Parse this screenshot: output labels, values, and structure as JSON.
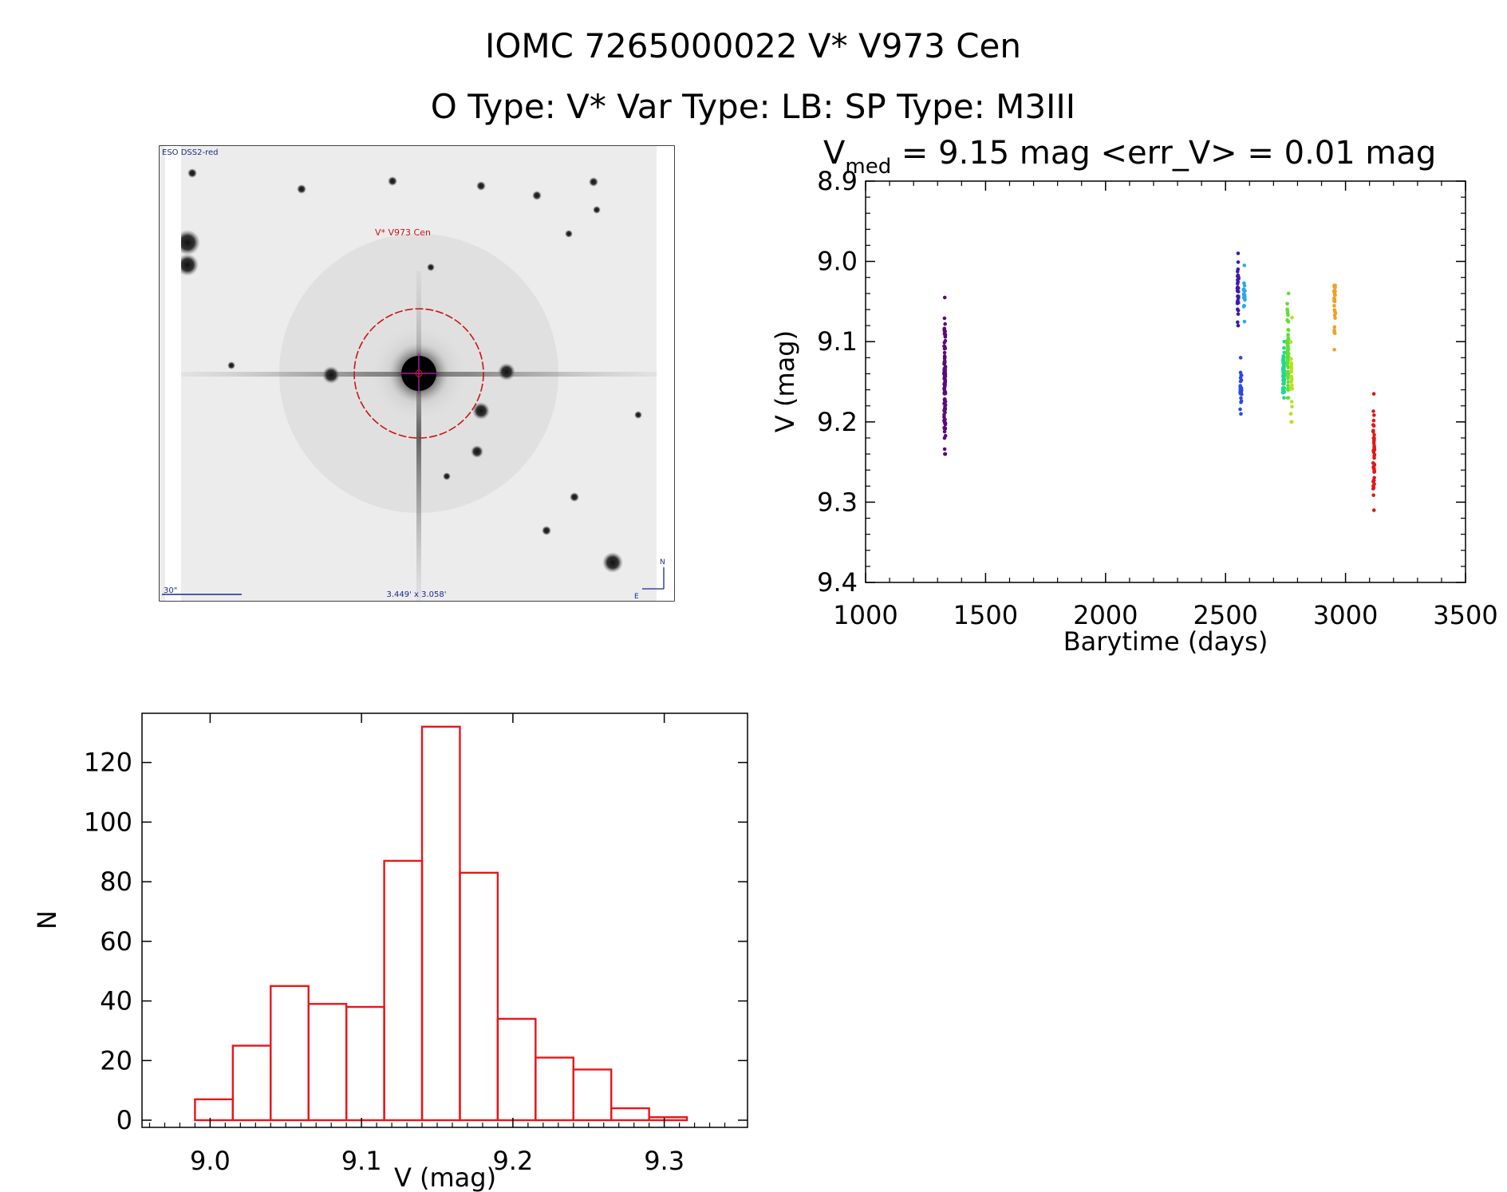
{
  "header": {
    "title": "IOMC 7265000022   V* V973 Cen",
    "subtitle": "O Type: V*  Var Type: LB:  SP Type: M3III"
  },
  "finder": {
    "survey_label": "ESO DSS2-red",
    "target_label": "V* V973 Cen",
    "scale_label": "30\"",
    "fov_label": "3.449' x 3.058'",
    "north_label": "N",
    "east_label": "E"
  },
  "colors": {
    "histogram": "#e8161b",
    "finder_circle": "#c81414",
    "finder_cross": "#a0209a",
    "finder_text": "#1a2a8c"
  },
  "chart_data": [
    {
      "type": "scatter",
      "title_prefix": "V",
      "title_sub": "med",
      "title_rest": " = 9.15 mag <err_V> = 0.01 mag",
      "xlabel": "Barytime (days)",
      "ylabel": "V (mag)",
      "xlim": [
        1000,
        3500
      ],
      "ylim": [
        9.4,
        8.9
      ],
      "y_inverted": true,
      "xticks": [
        1000,
        1500,
        2000,
        2500,
        3000,
        3500
      ],
      "yticks": [
        8.9,
        9.0,
        9.1,
        9.2,
        9.3,
        9.4
      ],
      "xtick_labels": [
        "1000",
        "1500",
        "2000",
        "2500",
        "3000",
        "3500"
      ],
      "ytick_labels": [
        "8.9",
        "9.0",
        "9.1",
        "9.2",
        "9.3",
        "9.4"
      ],
      "series": [
        {
          "color": "#5a0a78",
          "x": 1330,
          "ylo": 9.045,
          "yhi": 9.24,
          "ycenter": 9.16,
          "n": 110
        },
        {
          "color": "#3a1ab0",
          "x": 2552,
          "ylo": 8.99,
          "yhi": 9.08,
          "ycenter": 9.04,
          "n": 30
        },
        {
          "color": "#2a4ae0",
          "x": 2564,
          "ylo": 9.12,
          "yhi": 9.19,
          "ycenter": 9.16,
          "n": 25
        },
        {
          "color": "#2aaae8",
          "x": 2578,
          "ylo": 9.005,
          "yhi": 9.075,
          "ycenter": 9.04,
          "n": 20
        },
        {
          "color": "#20d890",
          "x": 2742,
          "ylo": 9.1,
          "yhi": 9.17,
          "ycenter": 9.14,
          "n": 60
        },
        {
          "color": "#60e030",
          "x": 2760,
          "ylo": 9.04,
          "yhi": 9.17,
          "ycenter": 9.12,
          "n": 60
        },
        {
          "color": "#b8e020",
          "x": 2775,
          "ylo": 9.07,
          "yhi": 9.2,
          "ycenter": 9.15,
          "n": 25
        },
        {
          "color": "#f0a020",
          "x": 2955,
          "ylo": 9.03,
          "yhi": 9.11,
          "ycenter": 9.055,
          "n": 30
        },
        {
          "color": "#e01818",
          "x": 3118,
          "ylo": 9.165,
          "yhi": 9.31,
          "ycenter": 9.24,
          "n": 45
        }
      ]
    },
    {
      "type": "bar",
      "xlabel": "V (mag)",
      "ylabel": "N",
      "xlim": [
        9.0,
        9.35
      ],
      "ylim": [
        0,
        130
      ],
      "xticks": [
        9.0,
        9.1,
        9.2,
        9.3
      ],
      "xtick_labels": [
        "9.0",
        "9.1",
        "9.2",
        "9.3"
      ],
      "yticks": [
        0,
        20,
        40,
        60,
        80,
        100,
        120
      ],
      "ytick_labels": [
        "0",
        "20",
        "40",
        "60",
        "80",
        "100",
        "120"
      ],
      "bin_width": 0.025,
      "bin_start": 8.99,
      "values": [
        7,
        25,
        45,
        39,
        38,
        87,
        132,
        83,
        34,
        21,
        17,
        4,
        1
      ]
    }
  ]
}
